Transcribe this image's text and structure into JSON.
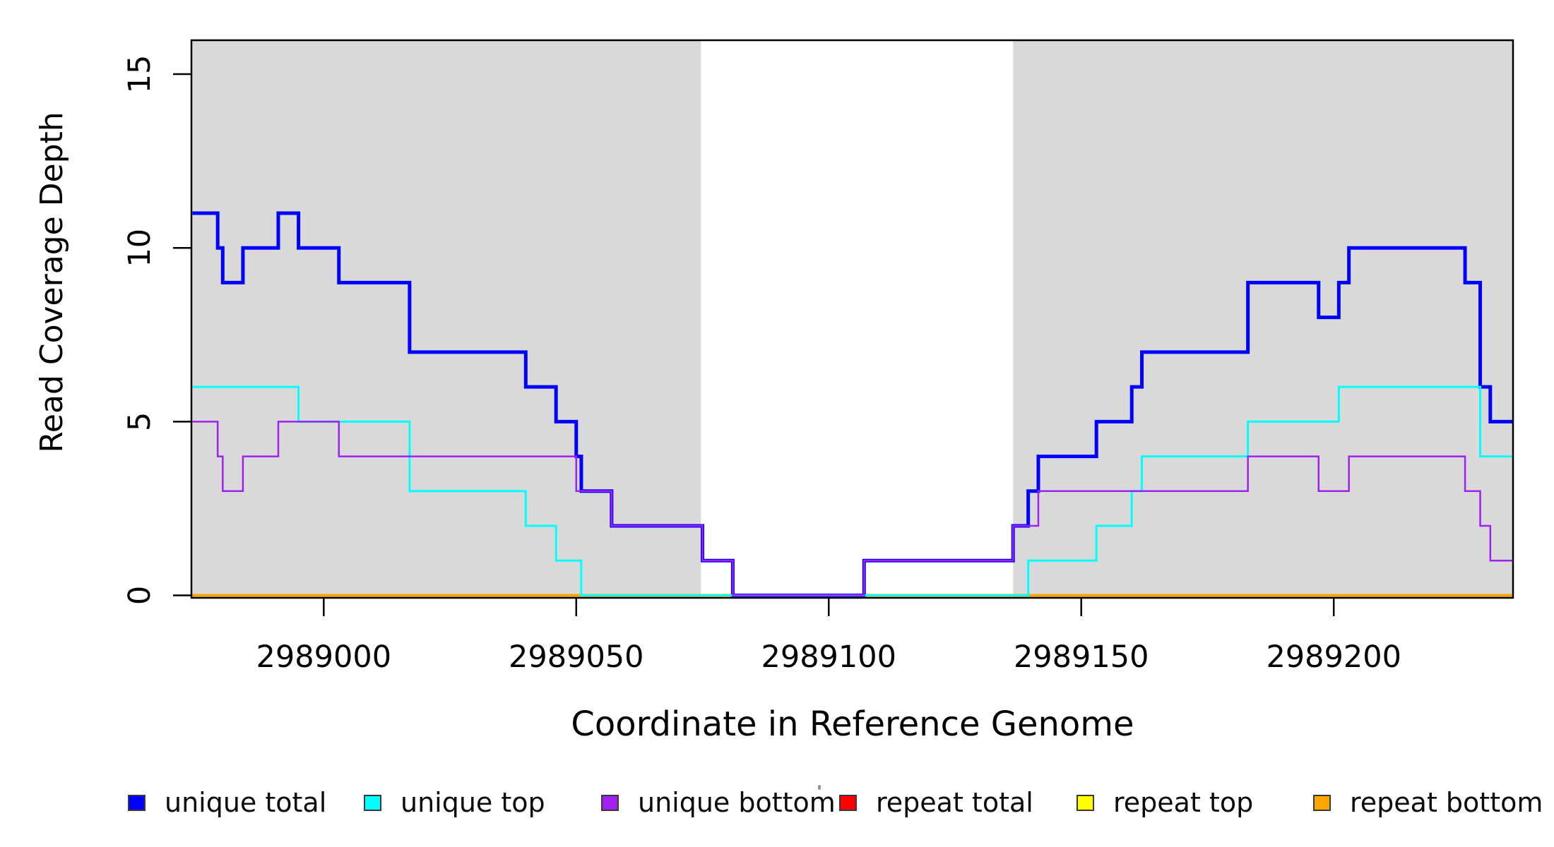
{
  "chart_data": {
    "type": "line",
    "subtype": "step-coverage-plot",
    "title": "",
    "xlabel": "Coordinate in Reference Genome",
    "ylabel": "Read Coverage Depth",
    "x_ticks": [
      2989000,
      2989050,
      2989100,
      2989150,
      2989200
    ],
    "x_tick_labels": [
      "2989000",
      "2989050",
      "2989100",
      "2989150",
      "2989200"
    ],
    "y_ticks": [
      0,
      5,
      10,
      15
    ],
    "y_tick_labels": [
      "0",
      "5",
      "10",
      "15"
    ],
    "xlim": [
      2988973.8,
      2989235.5
    ],
    "ylim": [
      0,
      16
    ],
    "grid": false,
    "x_end": 2989235.5,
    "background_color": "#ffffff",
    "shaded_region_color": "#d9d9d9",
    "shaded_regions": [
      [
        2988973.8,
        2989074.7
      ],
      [
        2989136.5,
        2989235.5
      ]
    ],
    "series": [
      {
        "name": "repeat total",
        "color": "#FF0000",
        "steps": [
          [
            2988974,
            0
          ]
        ]
      },
      {
        "name": "repeat top",
        "color": "#FFFF00",
        "steps": [
          [
            2988974,
            0
          ]
        ]
      },
      {
        "name": "repeat bottom",
        "color": "#FFA500",
        "steps": [
          [
            2988974,
            0
          ]
        ]
      },
      {
        "name": "unique total",
        "color": "#0000FF",
        "steps": [
          [
            2988974,
            11
          ],
          [
            2988979,
            10
          ],
          [
            2988980,
            9
          ],
          [
            2988984,
            10
          ],
          [
            2988991,
            11
          ],
          [
            2988995,
            10
          ],
          [
            2989003,
            9
          ],
          [
            2989017,
            7
          ],
          [
            2989040,
            6
          ],
          [
            2989046,
            5
          ],
          [
            2989050,
            4
          ],
          [
            2989051,
            3
          ],
          [
            2989057,
            2
          ],
          [
            2989075,
            1
          ],
          [
            2989081,
            0
          ],
          [
            2989107,
            1
          ],
          [
            2989136.5,
            2
          ],
          [
            2989139.5,
            3
          ],
          [
            2989141.5,
            4
          ],
          [
            2989153,
            5
          ],
          [
            2989160,
            6
          ],
          [
            2989162,
            7
          ],
          [
            2989183,
            9
          ],
          [
            2989197,
            8
          ],
          [
            2989201,
            9
          ],
          [
            2989203,
            10
          ],
          [
            2989226,
            9
          ],
          [
            2989229,
            6
          ],
          [
            2989231,
            5
          ]
        ]
      },
      {
        "name": "unique top",
        "color": "#00FFFF",
        "steps": [
          [
            2988974,
            6
          ],
          [
            2988995,
            5
          ],
          [
            2989017,
            3
          ],
          [
            2989040,
            2
          ],
          [
            2989046,
            1
          ],
          [
            2989051,
            0
          ],
          [
            2989139.5,
            1
          ],
          [
            2989153,
            2
          ],
          [
            2989160,
            3
          ],
          [
            2989162,
            4
          ],
          [
            2989183,
            5
          ],
          [
            2989201,
            6
          ],
          [
            2989229,
            4
          ]
        ]
      },
      {
        "name": "unique bottom",
        "color": "#A020F0",
        "steps": [
          [
            2988974,
            5
          ],
          [
            2988979,
            4
          ],
          [
            2988980,
            3
          ],
          [
            2988984,
            4
          ],
          [
            2988991,
            5
          ],
          [
            2989003,
            4
          ],
          [
            2989050,
            3
          ],
          [
            2989057,
            2
          ],
          [
            2989075,
            1
          ],
          [
            2989081,
            0
          ],
          [
            2989107,
            1
          ],
          [
            2989136.5,
            2
          ],
          [
            2989141.5,
            3
          ],
          [
            2989183,
            4
          ],
          [
            2989197,
            3
          ],
          [
            2989203,
            4
          ],
          [
            2989226,
            3
          ],
          [
            2989229,
            2
          ],
          [
            2989231,
            1
          ]
        ]
      }
    ]
  },
  "legend": {
    "items": [
      {
        "label": "unique total",
        "color": "#0000FF"
      },
      {
        "label": "unique top",
        "color": "#00FFFF"
      },
      {
        "label": "unique bottom",
        "color": "#A020F0"
      },
      {
        "label": "repeat total",
        "color": "#FF0000"
      },
      {
        "label": "repeat top",
        "color": "#FFFF00"
      },
      {
        "label": "repeat bottom",
        "color": "#FFA500"
      }
    ]
  }
}
